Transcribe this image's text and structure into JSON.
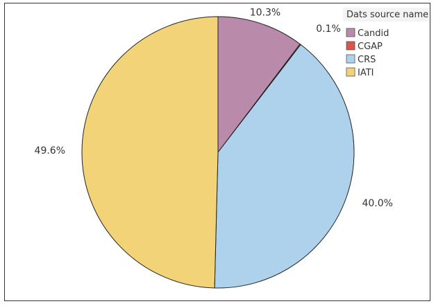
{
  "chart_data": {
    "type": "pie",
    "title": "",
    "legend_title": "Dats source name",
    "legend_position": "top-right",
    "start_angle_deg": 0,
    "direction": "clockwise",
    "slices": [
      {
        "name": "Candid",
        "value": 10.3,
        "label": "10.3%",
        "color": "#b98aaa"
      },
      {
        "name": "CGAP",
        "value": 0.1,
        "label": "0.1%",
        "color": "#d9534f"
      },
      {
        "name": "CRS",
        "value": 40.0,
        "label": "40.0%",
        "color": "#aed2ec"
      },
      {
        "name": "IATI",
        "value": 49.6,
        "label": "49.6%",
        "color": "#f2d377"
      }
    ]
  }
}
